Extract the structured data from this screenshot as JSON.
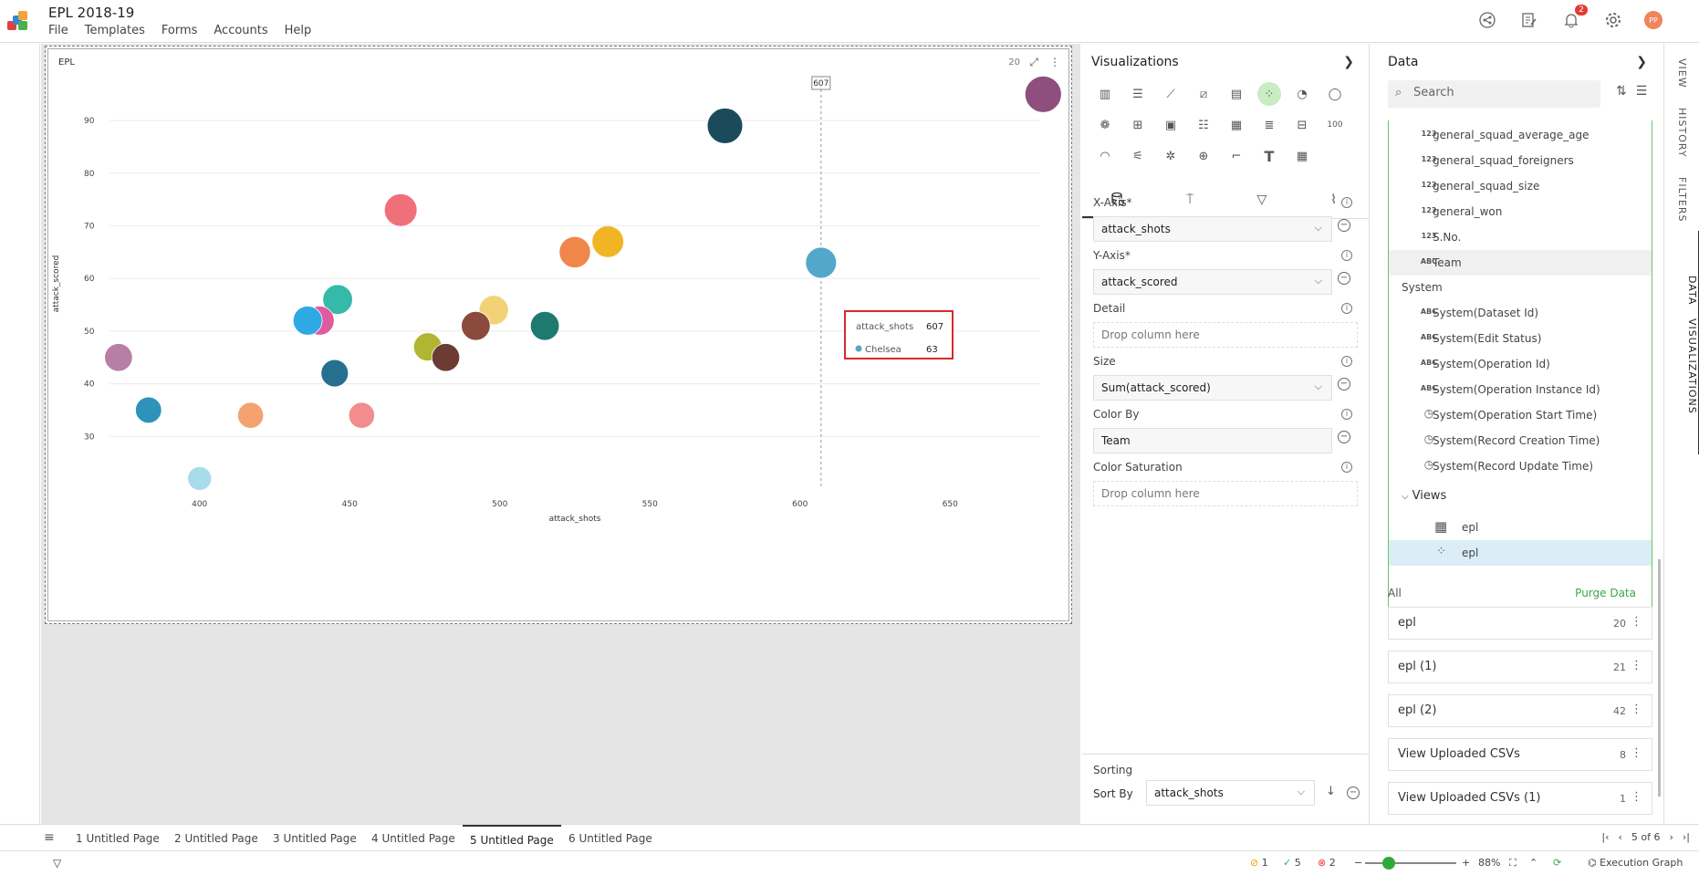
{
  "app": {
    "title": "EPL 2018-19",
    "menu": [
      "File",
      "Templates",
      "Forms",
      "Accounts",
      "Help"
    ],
    "notifications": "2",
    "avatar": "PP"
  },
  "chart_card": {
    "title": "EPL",
    "count": "20"
  },
  "chart_data": {
    "type": "scatter",
    "xlabel": "attack_shots",
    "ylabel": "attack_scored",
    "xlim": [
      370,
      680
    ],
    "ylim": [
      20,
      98
    ],
    "xticks": [
      400,
      450,
      500,
      550,
      600,
      650
    ],
    "yticks": [
      30,
      40,
      50,
      60,
      70,
      80,
      90
    ],
    "grid": true,
    "hover_x": 607,
    "points": [
      {
        "x": 681,
        "y": 95,
        "color": "#8e4f7e"
      },
      {
        "x": 575,
        "y": 89,
        "color": "#1a4a5c"
      },
      {
        "x": 467,
        "y": 73,
        "color": "#f0707a"
      },
      {
        "x": 536,
        "y": 67,
        "color": "#f1b424"
      },
      {
        "x": 525,
        "y": 65,
        "color": "#f0874a"
      },
      {
        "x": 607,
        "y": 63,
        "color": "#52a8c8",
        "team": "Chelsea"
      },
      {
        "x": 446,
        "y": 56,
        "color": "#35b9a9"
      },
      {
        "x": 498,
        "y": 54,
        "color": "#f3d277"
      },
      {
        "x": 440,
        "y": 52,
        "color": "#e05aa0"
      },
      {
        "x": 436,
        "y": 52,
        "color": "#2ea9e3"
      },
      {
        "x": 492,
        "y": 51,
        "color": "#8a4b3c"
      },
      {
        "x": 515,
        "y": 51,
        "color": "#1e7a6e"
      },
      {
        "x": 476,
        "y": 47,
        "color": "#b2b531"
      },
      {
        "x": 482,
        "y": 45,
        "color": "#6c3b31"
      },
      {
        "x": 373,
        "y": 45,
        "color": "#b77fa6"
      },
      {
        "x": 445,
        "y": 42,
        "color": "#266f8e"
      },
      {
        "x": 383,
        "y": 35,
        "color": "#2d93bb"
      },
      {
        "x": 417,
        "y": 34,
        "color": "#f5a273"
      },
      {
        "x": 454,
        "y": 34,
        "color": "#f28c8f"
      },
      {
        "x": 400,
        "y": 22,
        "color": "#a8dceb"
      }
    ]
  },
  "tooltip": {
    "hover_label": "607",
    "x_name": "attack_shots",
    "x_value": "607",
    "team": "Chelsea",
    "y_value": "63",
    "dot_color": "#52a8c8"
  },
  "viz_panel": {
    "title": "Visualizations",
    "last_icon_label": "100",
    "fields": {
      "xaxis_label": "X-Axis*",
      "xaxis_value": "attack_shots",
      "yaxis_label": "Y-Axis*",
      "yaxis_value": "attack_scored",
      "detail_label": "Detail",
      "detail_placeholder": "Drop column here",
      "size_label": "Size",
      "size_value": "Sum(attack_scored)",
      "color_label": "Color By",
      "color_value": "Team",
      "saturation_label": "Color Saturation",
      "saturation_placeholder": "Drop column here"
    },
    "sorting": {
      "title": "Sorting",
      "sort_by_label": "Sort By",
      "sort_by_value": "attack_shots"
    }
  },
  "data_panel": {
    "title": "Data",
    "search_placeholder": "Search",
    "columns": [
      {
        "type": "123",
        "name": "general_squad_average_age"
      },
      {
        "type": "123",
        "name": "general_squad_foreigners"
      },
      {
        "type": "123",
        "name": "general_squad_size"
      },
      {
        "type": "123",
        "name": "general_won"
      },
      {
        "type": "123",
        "name": "S.No."
      },
      {
        "type": "ABC",
        "name": "Team"
      }
    ],
    "system_title": "System",
    "system_columns": [
      {
        "type": "ABC",
        "name": "System(Dataset Id)"
      },
      {
        "type": "ABC",
        "name": "System(Edit Status)"
      },
      {
        "type": "ABC",
        "name": "System(Operation Id)"
      },
      {
        "type": "ABC",
        "name": "System(Operation Instance Id)"
      },
      {
        "type": "clock",
        "name": "System(Operation Start Time)"
      },
      {
        "type": "clock",
        "name": "System(Record Creation Time)"
      },
      {
        "type": "clock",
        "name": "System(Record Update Time)"
      }
    ],
    "views_title": "Views",
    "views": [
      "epl",
      "epl"
    ],
    "all_title": "All",
    "purge_label": "Purge Data",
    "datasets": [
      {
        "name": "epl",
        "count": "20"
      },
      {
        "name": "epl (1)",
        "count": "21"
      },
      {
        "name": "epl (2)",
        "count": "42"
      },
      {
        "name": "View Uploaded CSVs",
        "count": "8"
      },
      {
        "name": "View Uploaded CSVs (1)",
        "count": "1"
      }
    ]
  },
  "side_tabs": [
    "VIEW",
    "HISTORY",
    "FILTERS",
    "DATA",
    "VISUALIZATIONS"
  ],
  "pages": [
    "1 Untitled Page",
    "2 Untitled Page",
    "3 Untitled Page",
    "4 Untitled Page",
    "5 Untitled Page",
    "6 Untitled Page"
  ],
  "page_indicator": "5 of 6",
  "status": {
    "warnings": "1",
    "success": "5",
    "errors": "2",
    "zoom": "88%",
    "execution_graph": "Execution Graph"
  }
}
